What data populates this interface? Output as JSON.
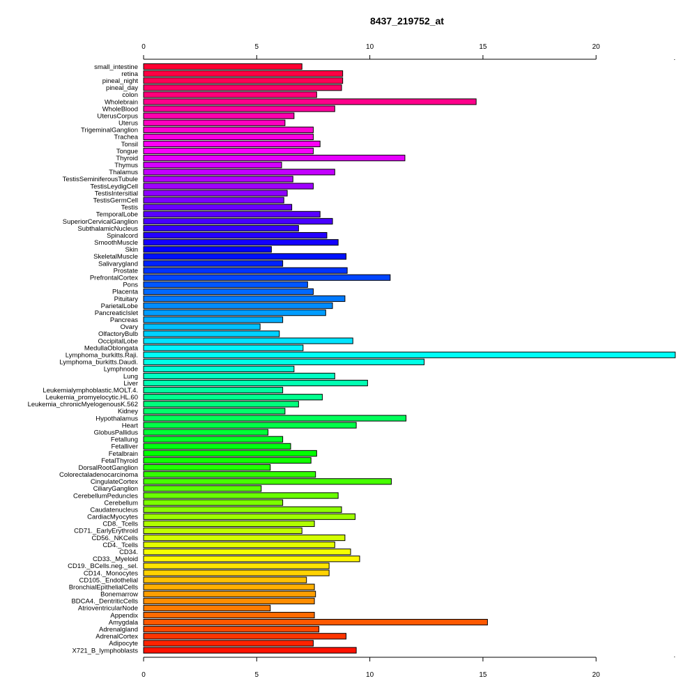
{
  "chart_data": {
    "type": "bar",
    "orientation": "horizontal",
    "title": "8437_219752_at",
    "xlabel": "",
    "ylabel": "",
    "xlim": [
      0,
      23.5
    ],
    "xticks": [
      0,
      5,
      10,
      15,
      20
    ],
    "grid": false,
    "legend": "none",
    "categories": [
      "small_intestine",
      "retina",
      "pineal_night",
      "pineal_day",
      "colon",
      "Wholebrain",
      "WholeBlood",
      "UterusCorpus",
      "Uterus",
      "TrigeminalGanglion",
      "Trachea",
      "Tonsil",
      "Tongue",
      "Thyroid",
      "Thymus",
      "Thalamus",
      "TestisSeminiferousTubule",
      "TestisLeydigCell",
      "TestisIntersitial",
      "TestisGermCell",
      "Testis",
      "TemporalLobe",
      "SuperiorCervicalGanglion",
      "SubthalamicNucleus",
      "Spinalcord",
      "SmoothMuscle",
      "Skin",
      "SkeletalMuscle",
      "Salivarygland",
      "Prostate",
      "PrefrontalCortex",
      "Pons",
      "Placenta",
      "Pituitary",
      "ParietalLobe",
      "PancreaticIslet",
      "Pancreas",
      "Ovary",
      "OlfactoryBulb",
      "OccipitalLobe",
      "MedullaOblongata",
      "Lymphoma_burkitts.Raji.",
      "Lymphoma_burkitts.Daudi.",
      "Lymphnode",
      "Lung",
      "Liver",
      "Leukemialymphoblastic.MOLT.4.",
      "Leukemia_promyelocytic.HL.60",
      "Leukemia_chronicMyelogenousK.562",
      "Kidney",
      "Hypothalamus",
      "Heart",
      "GlobusPallidus",
      "Fetallung",
      "Fetalliver",
      "Fetalbrain",
      "FetalThyroid",
      "DorsalRootGanglion",
      "Colorectaladenocarcinoma",
      "CingulateCortex",
      "CiliaryGanglion",
      "CerebellumPeduncles",
      "Cerebellum",
      "Caudatenucleus",
      "CardiacMyocytes",
      "CD8._Tcells",
      "CD71._EarlyErythroid",
      "CD56._NKCells",
      "CD4._Tcells",
      "CD34.",
      "CD33._Myeloid",
      "CD19._BCells.neg._sel.",
      "CD14._Monocytes",
      "CD105._Endothelial",
      "BronchialEpithelialCells",
      "Bonemarrow",
      "BDCA4._DentriticCells",
      "AtrioventricularNode",
      "Appendix",
      "Amygdala",
      "Adrenalgland",
      "AdrenalCortex",
      "Adipocyte",
      "X721_B_lymphoblasts"
    ],
    "values": [
      7.0,
      8.8,
      8.8,
      8.75,
      7.65,
      14.7,
      8.45,
      6.65,
      6.25,
      7.5,
      7.5,
      7.8,
      7.5,
      11.55,
      6.1,
      8.45,
      6.6,
      7.5,
      6.35,
      6.2,
      6.55,
      7.8,
      8.35,
      6.85,
      8.1,
      8.6,
      5.65,
      8.95,
      6.15,
      9.0,
      10.9,
      7.25,
      7.5,
      8.9,
      8.35,
      8.05,
      6.15,
      5.15,
      6.0,
      9.25,
      7.05,
      23.5,
      12.4,
      6.65,
      8.45,
      9.9,
      6.15,
      7.9,
      6.85,
      6.25,
      11.6,
      9.4,
      5.5,
      6.15,
      6.5,
      7.65,
      7.4,
      5.6,
      7.6,
      10.95,
      5.2,
      8.6,
      6.15,
      8.75,
      9.35,
      7.55,
      7.0,
      8.9,
      8.45,
      9.15,
      9.55,
      8.2,
      8.2,
      7.2,
      7.55,
      7.6,
      7.55,
      5.6,
      7.55,
      15.2,
      7.75,
      8.95,
      7.5,
      9.4
    ]
  }
}
